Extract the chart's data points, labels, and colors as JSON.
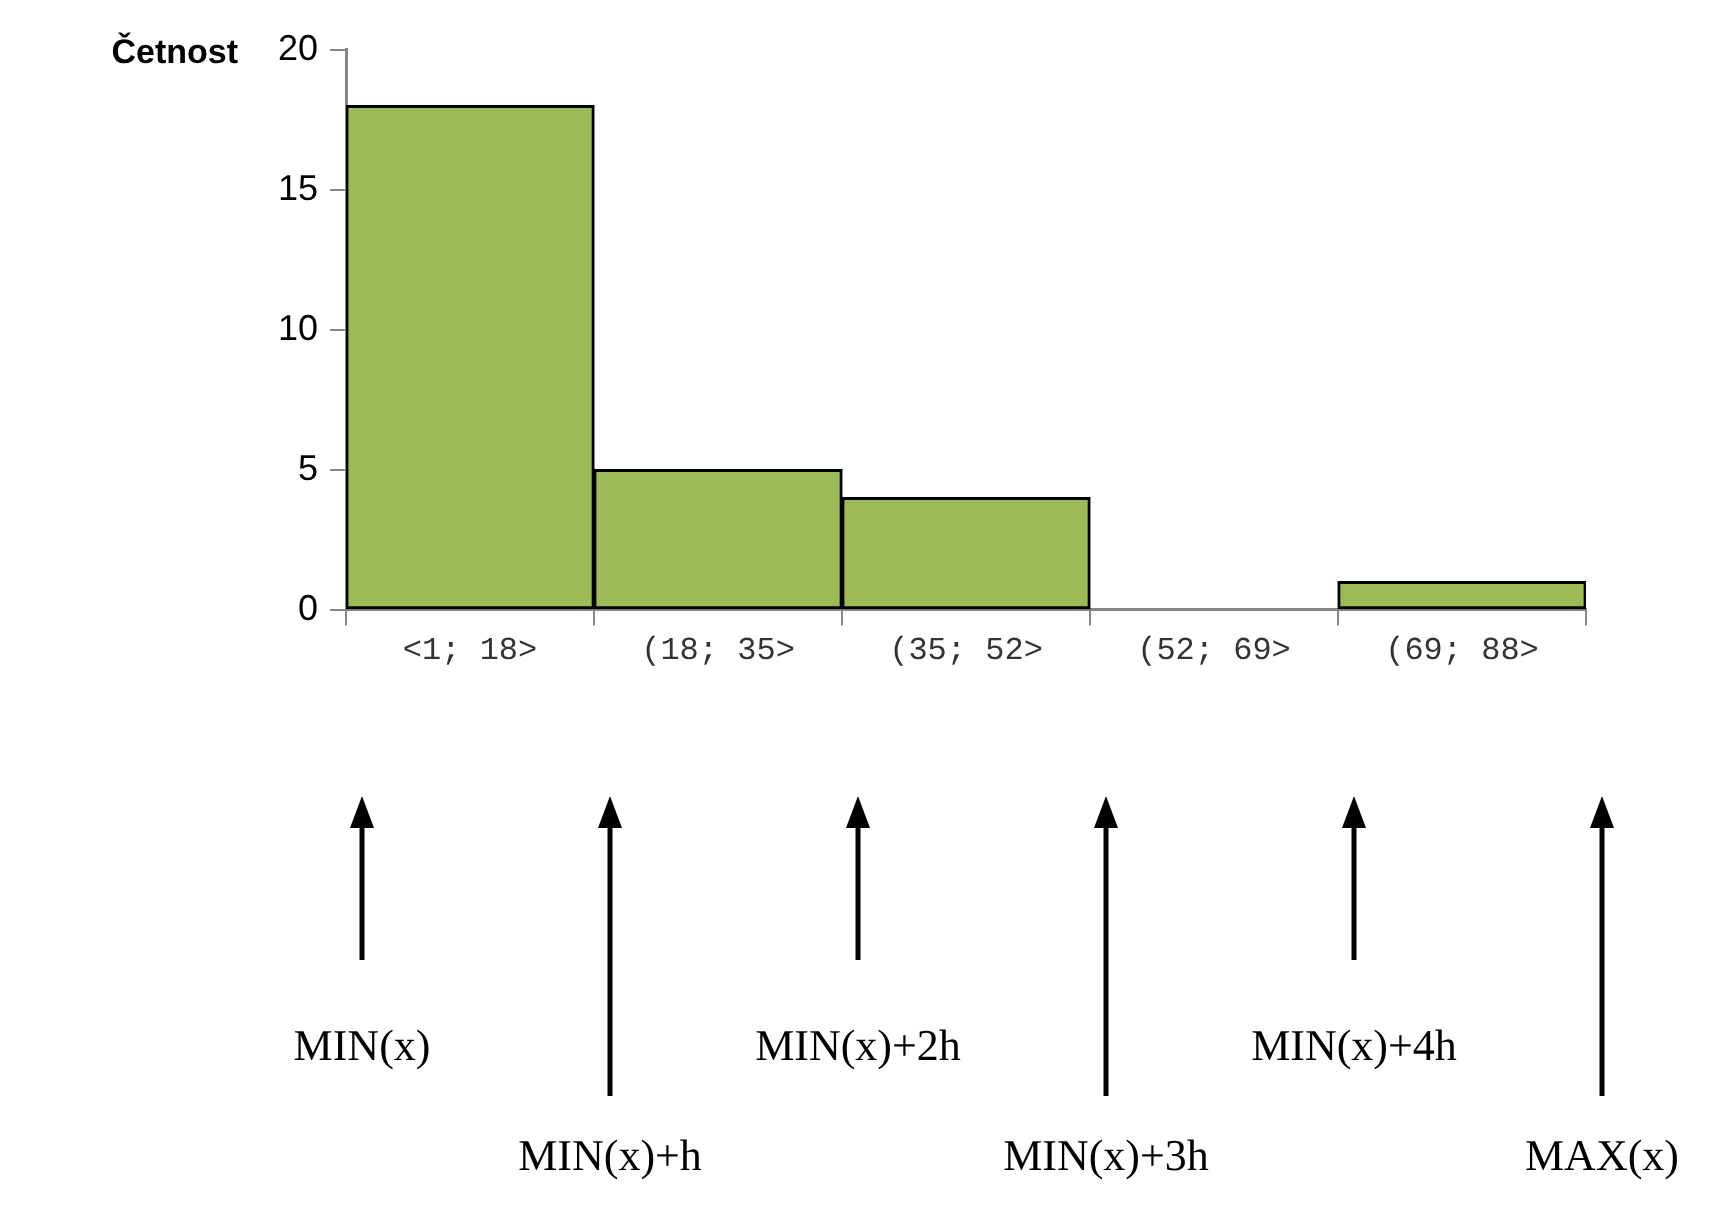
{
  "chart_data": {
    "type": "bar",
    "ylabel": "Četnost",
    "categories": [
      "<1; 18>",
      "(18; 35>",
      "(35; 52>",
      "(52; 69>",
      "(69; 88>"
    ],
    "values": [
      18,
      5,
      4,
      0,
      1
    ],
    "color": "#9bbb59",
    "ylim": [
      0,
      20
    ],
    "yticks": [
      0,
      5,
      10,
      15,
      20
    ],
    "grid": false,
    "annotations": [
      "MIN(x)",
      "MIN(x)+h",
      "MIN(x)+2h",
      "MIN(x)+3h",
      "MIN(x)+4h",
      "MAX(x)"
    ]
  }
}
